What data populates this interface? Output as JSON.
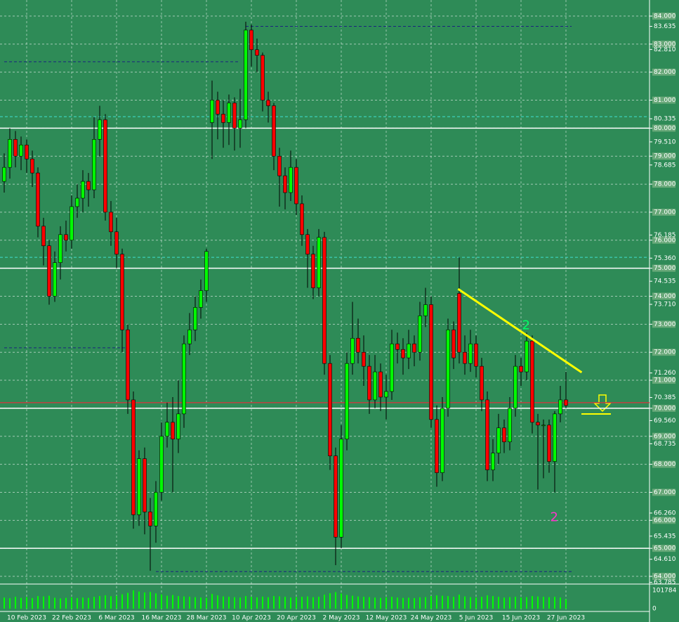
{
  "chart_data": {
    "type": "candlestick",
    "categories": [
      null,
      null,
      null,
      null,
      "10 Feb 2023",
      null,
      null,
      null,
      null,
      null,
      null,
      null,
      "22 Feb 2023",
      null,
      null,
      null,
      null,
      null,
      null,
      null,
      "6 Mar 2023",
      null,
      null,
      null,
      null,
      null,
      null,
      null,
      "16 Mar 2023",
      null,
      null,
      null,
      null,
      null,
      null,
      null,
      "28 Mar 2023",
      null,
      null,
      null,
      null,
      null,
      null,
      null,
      "10 Apr 2023",
      null,
      null,
      null,
      null,
      null,
      null,
      null,
      "20 Apr 2023",
      null,
      null,
      null,
      null,
      null,
      null,
      null,
      "2 May 2023",
      null,
      null,
      null,
      null,
      null,
      null,
      null,
      "12 May 2023",
      null,
      null,
      null,
      null,
      null,
      null,
      null,
      "24 May 2023",
      null,
      null,
      null,
      null,
      null,
      null,
      null,
      "5 Jun 2023",
      null,
      null,
      null,
      null,
      null,
      null,
      null,
      "15 Jun 2023",
      null,
      null,
      null,
      null,
      null,
      null,
      null,
      "27 Jun 2023"
    ],
    "ohlc": [
      [
        78.1,
        79.1,
        77.7,
        78.6
      ],
      [
        78.6,
        80.0,
        78.2,
        79.6
      ],
      [
        79.6,
        79.9,
        78.6,
        79.0
      ],
      [
        79.0,
        79.7,
        78.5,
        79.4
      ],
      [
        79.4,
        79.6,
        78.4,
        78.9
      ],
      [
        78.9,
        79.2,
        77.9,
        78.4
      ],
      [
        78.4,
        78.6,
        76.1,
        76.5
      ],
      [
        76.5,
        76.8,
        75.1,
        75.8
      ],
      [
        75.8,
        76.0,
        73.7,
        74.0
      ],
      [
        74.0,
        75.6,
        73.8,
        75.2
      ],
      [
        75.2,
        76.5,
        74.6,
        76.2
      ],
      [
        76.2,
        76.7,
        75.6,
        76.0
      ],
      [
        76.0,
        77.6,
        75.7,
        77.2
      ],
      [
        77.2,
        78.0,
        76.8,
        77.5
      ],
      [
        77.5,
        78.5,
        77.0,
        78.1
      ],
      [
        78.1,
        78.4,
        77.2,
        77.8
      ],
      [
        77.8,
        80.4,
        77.5,
        79.6
      ],
      [
        79.6,
        80.8,
        79.0,
        80.3
      ],
      [
        80.3,
        80.5,
        76.7,
        77.0
      ],
      [
        77.0,
        77.4,
        75.8,
        76.3
      ],
      [
        76.3,
        76.8,
        75.0,
        75.5
      ],
      [
        75.5,
        75.7,
        72.0,
        72.8
      ],
      [
        72.8,
        73.0,
        69.8,
        70.3
      ],
      [
        70.3,
        70.6,
        65.7,
        66.2
      ],
      [
        66.2,
        68.5,
        65.8,
        68.2
      ],
      [
        68.2,
        68.6,
        65.5,
        66.3
      ],
      [
        66.3,
        66.8,
        64.2,
        65.8
      ],
      [
        65.8,
        67.4,
        65.2,
        67.0
      ],
      [
        67.0,
        69.5,
        66.7,
        69.0
      ],
      [
        69.0,
        70.2,
        68.6,
        69.5
      ],
      [
        69.5,
        70.4,
        67.0,
        68.9
      ],
      [
        68.9,
        71.0,
        68.4,
        69.8
      ],
      [
        69.8,
        72.6,
        69.3,
        72.3
      ],
      [
        72.3,
        73.4,
        71.9,
        72.8
      ],
      [
        72.8,
        74.0,
        72.4,
        73.6
      ],
      [
        73.6,
        74.6,
        73.2,
        74.2
      ],
      [
        74.2,
        75.7,
        73.8,
        75.6
      ],
      [
        80.2,
        81.7,
        78.9,
        81.0
      ],
      [
        81.0,
        81.3,
        79.6,
        80.5
      ],
      [
        80.5,
        81.0,
        79.3,
        80.2
      ],
      [
        80.2,
        81.2,
        79.4,
        80.9
      ],
      [
        80.9,
        81.1,
        79.2,
        80.0
      ],
      [
        80.0,
        81.4,
        79.3,
        80.3
      ],
      [
        80.3,
        83.8,
        80.0,
        83.5
      ],
      [
        83.5,
        83.7,
        82.2,
        82.8
      ],
      [
        82.8,
        83.2,
        82.0,
        82.6
      ],
      [
        82.6,
        82.7,
        80.6,
        81.0
      ],
      [
        81.0,
        81.3,
        80.2,
        80.8
      ],
      [
        80.8,
        80.9,
        78.5,
        79.0
      ],
      [
        79.0,
        79.3,
        77.2,
        78.3
      ],
      [
        78.3,
        78.6,
        77.1,
        77.7
      ],
      [
        77.7,
        79.2,
        77.4,
        78.6
      ],
      [
        78.6,
        78.9,
        76.9,
        77.3
      ],
      [
        77.3,
        77.6,
        75.8,
        76.2
      ],
      [
        76.2,
        76.4,
        74.3,
        75.5
      ],
      [
        75.5,
        75.8,
        73.9,
        74.3
      ],
      [
        74.3,
        76.4,
        74.0,
        76.1
      ],
      [
        76.1,
        76.3,
        71.2,
        71.6
      ],
      [
        71.6,
        71.9,
        67.8,
        68.3
      ],
      [
        68.3,
        68.6,
        64.4,
        65.4
      ],
      [
        65.4,
        69.4,
        65.0,
        68.9
      ],
      [
        68.9,
        72.0,
        68.5,
        71.6
      ],
      [
        71.6,
        73.8,
        71.2,
        72.5
      ],
      [
        72.5,
        73.2,
        71.6,
        72.0
      ],
      [
        72.0,
        72.6,
        70.8,
        71.5
      ],
      [
        71.5,
        71.9,
        69.8,
        70.3
      ],
      [
        70.3,
        71.9,
        70.0,
        71.3
      ],
      [
        71.3,
        71.6,
        69.9,
        70.4
      ],
      [
        70.4,
        71.2,
        69.6,
        70.6
      ],
      [
        70.6,
        72.8,
        70.3,
        72.3
      ],
      [
        72.3,
        72.7,
        71.6,
        72.1
      ],
      [
        72.1,
        72.5,
        71.2,
        71.8
      ],
      [
        71.8,
        72.8,
        71.4,
        72.3
      ],
      [
        72.3,
        72.6,
        71.5,
        72.0
      ],
      [
        72.0,
        73.8,
        71.7,
        73.3
      ],
      [
        73.3,
        74.3,
        72.9,
        73.7
      ],
      [
        73.7,
        74.0,
        69.3,
        69.6
      ],
      [
        69.6,
        70.1,
        67.2,
        67.7
      ],
      [
        67.7,
        70.4,
        67.4,
        70.0
      ],
      [
        70.0,
        73.2,
        69.7,
        72.8
      ],
      [
        72.8,
        73.1,
        71.4,
        71.8
      ],
      [
        74.1,
        75.4,
        71.6,
        72.0
      ],
      [
        72.0,
        72.6,
        71.2,
        71.6
      ],
      [
        71.6,
        72.8,
        71.3,
        72.3
      ],
      [
        72.3,
        72.6,
        71.1,
        71.5
      ],
      [
        71.5,
        71.8,
        69.9,
        70.3
      ],
      [
        70.3,
        70.6,
        67.4,
        67.8
      ],
      [
        67.8,
        68.9,
        67.4,
        68.4
      ],
      [
        68.4,
        69.8,
        68.0,
        69.3
      ],
      [
        69.3,
        69.6,
        68.4,
        68.8
      ],
      [
        68.8,
        70.4,
        68.5,
        70.0
      ],
      [
        70.0,
        71.9,
        69.7,
        71.5
      ],
      [
        71.5,
        71.8,
        70.8,
        71.3
      ],
      [
        71.3,
        72.7,
        71.0,
        72.4
      ],
      [
        72.4,
        72.6,
        69.1,
        69.5
      ],
      [
        69.5,
        69.8,
        67.1,
        69.4
      ],
      [
        69.4,
        69.6,
        67.5,
        69.4
      ],
      [
        69.4,
        69.6,
        67.7,
        68.1
      ],
      [
        68.1,
        69.9,
        67.0,
        69.8
      ],
      [
        69.8,
        70.8,
        69.5,
        70.3
      ],
      [
        70.3,
        71.3,
        70.0,
        70.1
      ]
    ],
    "ylim": [
      63.75,
      84.45
    ],
    "yticks": [
      {
        "value": 84,
        "label": "84.000"
      },
      {
        "value": 83.635,
        "label": "83.635"
      },
      {
        "value": 83,
        "label": "83.000"
      },
      {
        "value": 82.81,
        "label": "82.810"
      },
      {
        "value": 82,
        "label": "82.000"
      },
      {
        "value": 81,
        "label": "81.000"
      },
      {
        "value": 80.335,
        "label": "80.335"
      },
      {
        "value": 80,
        "label": "80.000"
      },
      {
        "value": 79.51,
        "label": "79.510"
      },
      {
        "value": 79,
        "label": "79.000"
      },
      {
        "value": 78.685,
        "label": "78.685"
      },
      {
        "value": 78,
        "label": "78.000"
      },
      {
        "value": 77,
        "label": "77.000"
      },
      {
        "value": 76.185,
        "label": "76.185"
      },
      {
        "value": 76,
        "label": "76.000"
      },
      {
        "value": 75.36,
        "label": "75.360"
      },
      {
        "value": 75,
        "label": "75.000"
      },
      {
        "value": 74.535,
        "label": "74.535"
      },
      {
        "value": 74,
        "label": "74.000"
      },
      {
        "value": 73.71,
        "label": "73.710"
      },
      {
        "value": 73,
        "label": "73.000"
      },
      {
        "value": 72,
        "label": "72.000"
      },
      {
        "value": 71.26,
        "label": "71.260"
      },
      {
        "value": 71,
        "label": "71.000"
      },
      {
        "value": 70.385,
        "label": "70.385"
      },
      {
        "value": 70,
        "label": "70.000"
      },
      {
        "value": 69.56,
        "label": "69.560"
      },
      {
        "value": 69,
        "label": "69.000"
      },
      {
        "value": 68.735,
        "label": "68.735"
      },
      {
        "value": 68,
        "label": "68.000"
      },
      {
        "value": 67,
        "label": "67.000"
      },
      {
        "value": 66.26,
        "label": "66.260"
      },
      {
        "value": 66,
        "label": "66.000"
      },
      {
        "value": 65.435,
        "label": "65.435"
      },
      {
        "value": 65,
        "label": "65.000"
      },
      {
        "value": 64.61,
        "label": "64.610"
      },
      {
        "value": 64,
        "label": "64.000"
      },
      {
        "value": 63.785,
        "label": "63.785"
      }
    ],
    "grid": true,
    "bull_color": "#00ff00",
    "bear_color": "#ff0000",
    "background": "#2e8b57",
    "levels": [
      {
        "value": 80,
        "color": "#ffffff",
        "dash": false
      },
      {
        "value": 75,
        "color": "#ffffff",
        "dash": false
      },
      {
        "value": 70,
        "color": "#ffffff",
        "dash": false
      },
      {
        "value": 65,
        "color": "#ffffff",
        "dash": false
      },
      {
        "value": 80.41,
        "color": "#40e0d0",
        "dash": true
      },
      {
        "value": 75.39,
        "color": "#40e0d0",
        "dash": true
      },
      {
        "value": 70.2,
        "color": "#c04040",
        "dash": false
      },
      {
        "value": 83.635,
        "color": "#1a237e",
        "dash": true,
        "from": 43,
        "to": 101
      },
      {
        "value": 82.37,
        "color": "#1a237e",
        "dash": true,
        "from": 0,
        "to": 42
      },
      {
        "value": 72.16,
        "color": "#1a237e",
        "dash": true,
        "from": 0,
        "to": 22
      },
      {
        "value": 64.17,
        "color": "#1a237e",
        "dash": true,
        "from": 27,
        "to": 101
      }
    ],
    "trendline": {
      "x": [
        80.8,
        102.8
      ],
      "y": [
        74.26,
        71.28
      ],
      "color": "#ffff00"
    },
    "annotations": [
      {
        "text": "2",
        "x": 92.9,
        "y": 72.95,
        "color": "#00ff66"
      },
      {
        "text": "2",
        "x": 97.9,
        "y": 66.1,
        "color": "#ff33cc"
      }
    ],
    "volume": {
      "values": [
        62000,
        58000,
        66000,
        60000,
        64000,
        59000,
        70000,
        68000,
        72000,
        61000,
        57000,
        60000,
        63000,
        59000,
        62000,
        60000,
        66000,
        70000,
        74000,
        69000,
        72000,
        80000,
        88000,
        101784,
        95000,
        90000,
        93000,
        85000,
        79000,
        72000,
        76000,
        70000,
        68000,
        66000,
        64000,
        62000,
        60000,
        82000,
        74000,
        68000,
        66000,
        64000,
        62000,
        70000,
        66000,
        63000,
        67000,
        64000,
        70000,
        68000,
        66000,
        62000,
        64000,
        66000,
        68000,
        64000,
        66000,
        78000,
        86000,
        92000,
        84000,
        76000,
        72000,
        68000,
        66000,
        64000,
        62000,
        60000,
        63000,
        66000,
        62000,
        60000,
        61000,
        59000,
        63000,
        64000,
        70000,
        74000,
        72000,
        70000,
        66000,
        78000,
        68000,
        64000,
        62000,
        66000,
        74000,
        70000,
        66000,
        62000,
        64000,
        66000,
        62000,
        64000,
        70000,
        68000,
        66000,
        64000,
        66000,
        62000,
        52000
      ],
      "ylim": [
        0,
        101784
      ],
      "yticks": [
        0,
        101784
      ],
      "color": "#00ff00"
    }
  }
}
